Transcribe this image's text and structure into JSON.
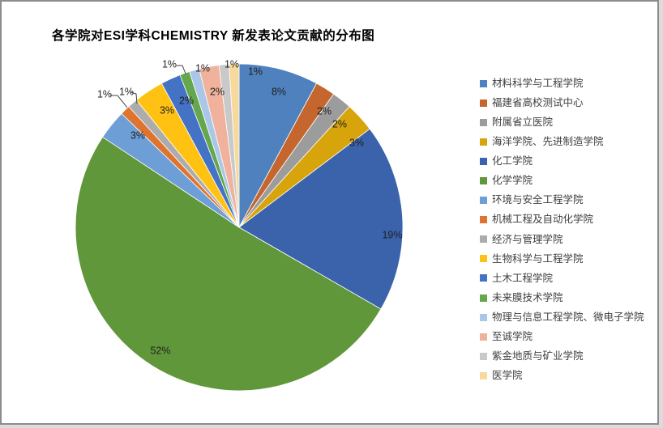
{
  "chart_data": {
    "type": "pie",
    "title": "各学院对ESI学科CHEMISTRY 新发表论文贡献的分布图",
    "legend_position": "right",
    "values_are": "percent-of-total",
    "slices": [
      {
        "label": "材料科学与工程学院",
        "value": 8,
        "pct": "8%",
        "color": "#4E81BD"
      },
      {
        "label": "福建省高校测试中心",
        "value": 2,
        "pct": "2%",
        "color": "#C4662E"
      },
      {
        "label": "附属省立医院",
        "value": 2,
        "pct": "2%",
        "color": "#9C9C9C"
      },
      {
        "label": "海洋学院、先进制造学院",
        "value": 3,
        "pct": "3%",
        "color": "#D8A40C"
      },
      {
        "label": "化工学院",
        "value": 19,
        "pct": "19%",
        "color": "#3A63AC"
      },
      {
        "label": "化学学院",
        "value": 52,
        "pct": "52%",
        "color": "#61973B"
      },
      {
        "label": "环境与安全工程学院",
        "value": 3,
        "pct": "3%",
        "color": "#6D9ED6"
      },
      {
        "label": "机械工程及自动化学院",
        "value": 1,
        "pct": "1%",
        "color": "#DE742F"
      },
      {
        "label": "经济与管理学院",
        "value": 1,
        "pct": "1%",
        "color": "#ACACAC"
      },
      {
        "label": "生物科学与工程学院",
        "value": 3,
        "pct": "3%",
        "color": "#FFC213"
      },
      {
        "label": "土木工程学院",
        "value": 2,
        "pct": "2%",
        "color": "#4472C4"
      },
      {
        "label": "未来膜技术学院",
        "value": 1,
        "pct": "1%",
        "color": "#64A74C"
      },
      {
        "label": "物理与信息工程学院、微电子学院",
        "value": 1,
        "pct": "1%",
        "color": "#AAC6E8"
      },
      {
        "label": "至诚学院",
        "value": 2,
        "pct": "2%",
        "color": "#F0B29C"
      },
      {
        "label": "紫金地质与矿业学院",
        "value": 1,
        "pct": "1%",
        "color": "#C9C9C9"
      },
      {
        "label": "医学院",
        "value": 1,
        "pct": "1%",
        "color": "#F7D99B"
      }
    ]
  }
}
